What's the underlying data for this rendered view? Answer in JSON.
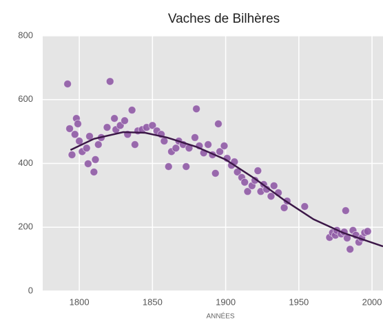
{
  "chart_data": {
    "type": "scatter",
    "title": "Vaches de Bilhères",
    "x_label": "ANNÉES",
    "color": "#8f5aa5",
    "line_color": "#3b1747",
    "grid": true,
    "xlim": [
      1775,
      2007.5
    ],
    "ylim": [
      0,
      800
    ],
    "xticks": [
      1800,
      1850,
      1900,
      1950,
      2000
    ],
    "yticks": [
      0,
      200,
      400,
      600,
      800
    ],
    "x": [
      1792,
      1821,
      1793.4,
      1798,
      1799,
      1797,
      1795,
      1800,
      1802,
      1805,
      1807,
      1806,
      1811,
      1810,
      1813,
      1815,
      1819,
      1824,
      1825,
      1828,
      1831,
      1833,
      1836,
      1838,
      1840,
      1843,
      1846,
      1850,
      1853,
      1856,
      1858,
      1861,
      1863,
      1866,
      1868,
      1871,
      1873,
      1875,
      1879,
      1880,
      1882,
      1885,
      1888,
      1891,
      1893,
      1895,
      1896,
      1899,
      1901,
      1904,
      1906,
      1908,
      1911,
      1913,
      1915,
      1918,
      1920,
      1922,
      1924,
      1926,
      1928,
      1931,
      1933,
      1936,
      1940,
      1942,
      1954,
      1971,
      1973,
      1975,
      1976,
      1979,
      1981,
      1982,
      1983,
      1985,
      1987,
      1989,
      1991,
      1993,
      1995,
      1997
    ],
    "values": [
      649,
      657,
      509,
      541,
      524,
      491,
      427,
      470,
      437,
      448,
      485,
      399,
      412,
      373,
      459,
      481,
      513,
      541,
      506,
      519,
      534,
      491,
      567,
      459,
      502,
      506,
      513,
      519,
      502,
      491,
      470,
      390,
      437,
      448,
      470,
      459,
      390,
      448,
      481,
      571,
      455,
      433,
      459,
      427,
      369,
      524,
      437,
      455,
      416,
      394,
      405,
      373,
      356,
      341,
      312,
      330,
      347,
      377,
      312,
      334,
      319,
      297,
      330,
      308,
      261,
      282,
      265,
      168,
      183,
      175,
      190,
      179,
      185,
      252,
      166,
      131,
      190,
      175,
      153,
      166,
      183,
      187
    ],
    "trend": {
      "x": [
        1794,
        1810,
        1830,
        1845,
        1860,
        1880,
        1900,
        1920,
        1940,
        1960,
        1980,
        2007.5
      ],
      "values": [
        442,
        477,
        498,
        496,
        481,
        452,
        412,
        352,
        285,
        225,
        183,
        140
      ]
    }
  }
}
